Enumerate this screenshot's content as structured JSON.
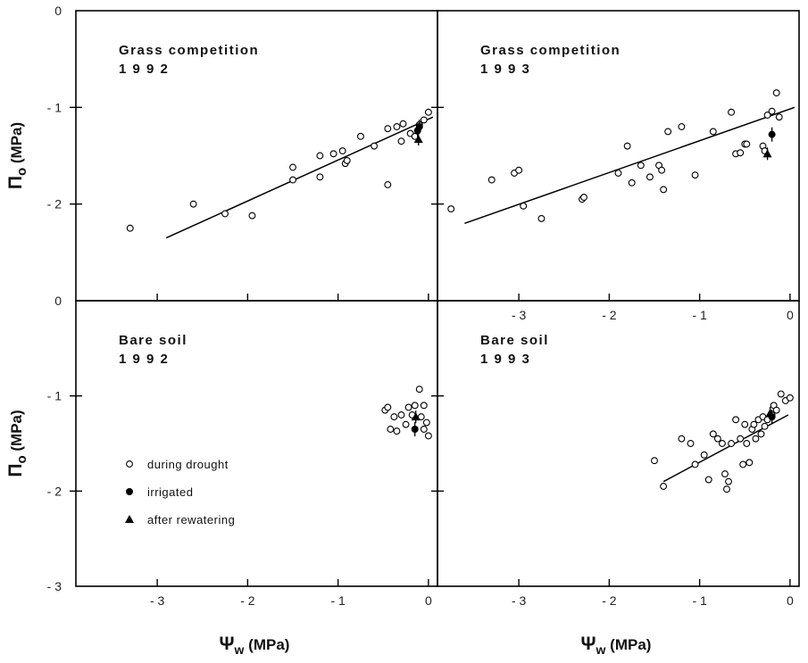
{
  "chart_data": [
    {
      "type": "scatter",
      "panel": "top-left",
      "title_lines": [
        "Grass   competition",
        "1 9 9 2"
      ],
      "xlabel": "Ψw  (MPa)",
      "ylabel": "Πo (MPa)",
      "xlim": [
        -3.9,
        0.1
      ],
      "ylim": [
        -3,
        0
      ],
      "x_ticks": [
        -3,
        -2,
        -1,
        0
      ],
      "y_ticks": [
        0,
        -1,
        -2
      ],
      "series": [
        {
          "key": "during_drought",
          "x": [
            -3.3,
            -2.6,
            -2.25,
            -1.95,
            -1.5,
            -1.5,
            -1.2,
            -1.2,
            -1.05,
            -0.95,
            -0.92,
            -0.9,
            -0.75,
            -0.6,
            -0.45,
            -0.45,
            -0.35,
            -0.3,
            -0.28,
            -0.2,
            -0.15,
            -0.1,
            -0.05,
            0.0
          ],
          "y": [
            -2.25,
            -2.0,
            -2.1,
            -2.12,
            -1.62,
            -1.75,
            -1.72,
            -1.5,
            -1.48,
            -1.45,
            -1.58,
            -1.55,
            -1.3,
            -1.4,
            -1.22,
            -1.8,
            -1.2,
            -1.35,
            -1.17,
            -1.27,
            -1.3,
            -1.18,
            -1.13,
            -1.05
          ]
        },
        {
          "key": "irrigated",
          "x": [
            -0.12,
            -0.1
          ],
          "y": [
            -1.24,
            -1.2
          ]
        },
        {
          "key": "after_rewatering",
          "x": [
            -0.11
          ],
          "y": [
            -1.33
          ]
        }
      ],
      "lines": [
        {
          "x": [
            -2.9,
            0.05
          ],
          "y": [
            -2.35,
            -1.1
          ]
        }
      ]
    },
    {
      "type": "scatter",
      "panel": "top-right",
      "title_lines": [
        "Grass   competition",
        "1 9 9 3"
      ],
      "xlabel": "Ψw  (MPa)",
      "xlim": [
        -3.9,
        0.1
      ],
      "ylim": [
        -3,
        0
      ],
      "x_ticks": [
        -3,
        -2,
        -1,
        0
      ],
      "x_tick_labels": [
        "- 3",
        "- 2",
        "- 1",
        "0"
      ],
      "series": [
        {
          "key": "during_drought",
          "x": [
            -3.75,
            -3.3,
            -3.05,
            -3.0,
            -2.95,
            -2.75,
            -2.3,
            -2.28,
            -1.9,
            -1.8,
            -1.75,
            -1.65,
            -1.55,
            -1.45,
            -1.42,
            -1.4,
            -1.35,
            -1.2,
            -1.05,
            -0.85,
            -0.65,
            -0.6,
            -0.55,
            -0.5,
            -0.48,
            -0.3,
            -0.28,
            -0.25,
            -0.2,
            -0.15,
            -0.12
          ],
          "y": [
            -2.05,
            -1.75,
            -1.68,
            -1.65,
            -2.02,
            -2.15,
            -1.95,
            -1.93,
            -1.68,
            -1.4,
            -1.78,
            -1.6,
            -1.72,
            -1.6,
            -1.65,
            -1.85,
            -1.25,
            -1.2,
            -1.7,
            -1.25,
            -1.05,
            -1.48,
            -1.47,
            -1.38,
            -1.38,
            -1.4,
            -1.45,
            -1.08,
            -1.04,
            -0.85,
            -1.1
          ]
        },
        {
          "key": "irrigated",
          "x": [
            -0.2
          ],
          "y": [
            -1.28
          ]
        },
        {
          "key": "after_rewatering",
          "x": [
            -0.25
          ],
          "y": [
            -1.48
          ]
        }
      ],
      "lines": [
        {
          "x": [
            -3.6,
            0.05
          ],
          "y": [
            -2.2,
            -1.0
          ]
        }
      ]
    },
    {
      "type": "scatter",
      "panel": "bottom-left",
      "title_lines": [
        "Bare   soil",
        "1 9 9 2"
      ],
      "xlabel": "Ψw  (MPa)",
      "ylabel": "Πo (MPa)",
      "xlim": [
        -3.9,
        0.1
      ],
      "ylim": [
        -3,
        0
      ],
      "x_ticks": [
        -3,
        -2,
        -1,
        0
      ],
      "x_tick_labels": [
        "- 3",
        "- 2",
        "- 1",
        "0"
      ],
      "y_ticks": [
        0,
        -1,
        -2,
        -3
      ],
      "y_tick_labels": [
        "0",
        "- 1",
        "- 2",
        "- 3"
      ],
      "series": [
        {
          "key": "during_drought",
          "x": [
            -0.48,
            -0.45,
            -0.42,
            -0.38,
            -0.35,
            -0.3,
            -0.25,
            -0.22,
            -0.18,
            -0.15,
            -0.1,
            -0.08,
            -0.05,
            -0.05,
            -0.02,
            0.0
          ],
          "y": [
            -1.15,
            -1.12,
            -1.35,
            -1.22,
            -1.37,
            -1.2,
            -1.3,
            -1.12,
            -1.2,
            -1.1,
            -0.93,
            -1.22,
            -1.35,
            -1.1,
            -1.28,
            -1.42
          ]
        },
        {
          "key": "irrigated",
          "x": [
            -0.15
          ],
          "y": [
            -1.35
          ]
        },
        {
          "key": "after_rewatering",
          "x": [
            -0.14
          ],
          "y": [
            -1.22
          ]
        }
      ],
      "lines": []
    },
    {
      "type": "scatter",
      "panel": "bottom-right",
      "title_lines": [
        "Bare   soil",
        "1 9 9 3"
      ],
      "xlabel": "Ψw  (MPa)",
      "xlim": [
        -3.9,
        0.1
      ],
      "ylim": [
        -3,
        0
      ],
      "x_ticks": [
        -3,
        -2,
        -1,
        0
      ],
      "x_tick_labels": [
        "- 3",
        "- 2",
        "- 1",
        "0"
      ],
      "series": [
        {
          "key": "during_drought",
          "x": [
            -1.5,
            -1.4,
            -1.2,
            -1.1,
            -1.05,
            -0.95,
            -0.9,
            -0.85,
            -0.8,
            -0.75,
            -0.72,
            -0.7,
            -0.68,
            -0.65,
            -0.6,
            -0.55,
            -0.52,
            -0.5,
            -0.48,
            -0.45,
            -0.42,
            -0.4,
            -0.38,
            -0.35,
            -0.32,
            -0.3,
            -0.28,
            -0.25,
            -0.2,
            -0.18,
            -0.15,
            -0.1,
            -0.05,
            0.0
          ],
          "y": [
            -1.68,
            -1.95,
            -1.45,
            -1.5,
            -1.72,
            -1.62,
            -1.88,
            -1.4,
            -1.45,
            -1.5,
            -1.82,
            -1.98,
            -1.9,
            -1.5,
            -1.25,
            -1.45,
            -1.72,
            -1.3,
            -1.5,
            -1.7,
            -1.35,
            -1.3,
            -1.45,
            -1.25,
            -1.4,
            -1.22,
            -1.32,
            -1.25,
            -1.2,
            -1.1,
            -1.15,
            -0.98,
            -1.05,
            -1.02
          ]
        },
        {
          "key": "irrigated",
          "x": [
            -0.2
          ],
          "y": [
            -1.22
          ]
        },
        {
          "key": "after_rewatering",
          "x": [
            -0.22
          ],
          "y": [
            -1.18
          ]
        }
      ],
      "lines": [
        {
          "x": [
            -1.4,
            -0.02
          ],
          "y": [
            -1.9,
            -1.2
          ]
        }
      ]
    }
  ],
  "legend": [
    {
      "key": "during_drought",
      "symbol": "open-circle",
      "label": "during drought"
    },
    {
      "key": "irrigated",
      "symbol": "filled-circle",
      "label": "irrigated"
    },
    {
      "key": "after_rewatering",
      "symbol": "filled-triangle",
      "label": "after rewatering"
    }
  ],
  "x_axis_title": {
    "symbol": "Ψ",
    "sub": "w",
    "unit": "(MPa)"
  },
  "y_axis_title": {
    "symbol": "Π",
    "sub": "o",
    "unit": "(MPa)"
  },
  "colors": {
    "ink": "#000000",
    "background": "#ffffff"
  }
}
